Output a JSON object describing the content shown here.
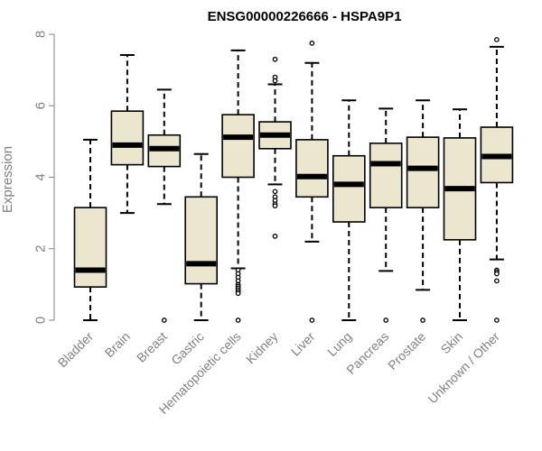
{
  "chart_data": {
    "type": "boxplot",
    "title": "ENSG00000226666 - HSPA9P1",
    "xlabel": "",
    "ylabel": "Expression",
    "ylim": [
      0,
      8
    ],
    "yticks": [
      "0",
      "2",
      "4",
      "6",
      "8"
    ],
    "box_fill": "#ede6cf",
    "stroke_color": "#000000",
    "axis_color": "#808080",
    "categories": [
      "Bladder",
      "Brain",
      "Breast",
      "Gastric",
      "Hematopoietic cells",
      "Kidney",
      "Liver",
      "Lung",
      "Pancreas",
      "Prostate",
      "Skin",
      "Unknown / Other"
    ],
    "series": [
      {
        "name": "Bladder",
        "min": 0.0,
        "q1": 0.93,
        "median": 1.4,
        "q3": 3.15,
        "max": 5.05,
        "outliers": []
      },
      {
        "name": "Brain",
        "min": 3.0,
        "q1": 4.35,
        "median": 4.9,
        "q3": 5.85,
        "max": 7.42,
        "outliers": []
      },
      {
        "name": "Breast",
        "min": 3.25,
        "q1": 4.3,
        "median": 4.8,
        "q3": 5.18,
        "max": 6.45,
        "outliers": [
          0.0
        ]
      },
      {
        "name": "Gastric",
        "min": 0.0,
        "q1": 1.02,
        "median": 1.58,
        "q3": 3.45,
        "max": 4.65,
        "outliers": []
      },
      {
        "name": "Hematopoietic cells",
        "min": 1.45,
        "q1": 4.0,
        "median": 5.12,
        "q3": 5.75,
        "max": 7.55,
        "outliers": [
          1.4,
          1.3,
          1.2,
          1.1,
          1.0,
          0.95,
          0.9,
          0.85,
          0.8,
          0.75,
          0.0
        ]
      },
      {
        "name": "Kidney",
        "min": 3.8,
        "q1": 4.8,
        "median": 5.18,
        "q3": 5.55,
        "max": 6.6,
        "outliers": [
          7.3,
          6.8,
          6.7,
          3.6,
          3.45,
          3.35,
          3.25,
          3.2,
          2.35
        ]
      },
      {
        "name": "Liver",
        "min": 2.2,
        "q1": 3.45,
        "median": 4.02,
        "q3": 5.05,
        "max": 7.2,
        "outliers": [
          7.75,
          0.0
        ]
      },
      {
        "name": "Lung",
        "min": 0.0,
        "q1": 2.75,
        "median": 3.8,
        "q3": 4.6,
        "max": 6.15,
        "outliers": []
      },
      {
        "name": "Pancreas",
        "min": 1.38,
        "q1": 3.15,
        "median": 4.38,
        "q3": 4.95,
        "max": 5.92,
        "outliers": [
          0.0
        ]
      },
      {
        "name": "Prostate",
        "min": 0.85,
        "q1": 3.15,
        "median": 4.25,
        "q3": 5.12,
        "max": 6.15,
        "outliers": [
          0.0
        ]
      },
      {
        "name": "Skin",
        "min": 0.0,
        "q1": 2.25,
        "median": 3.68,
        "q3": 5.1,
        "max": 5.9,
        "outliers": []
      },
      {
        "name": "Unknown / Other",
        "min": 1.7,
        "q1": 3.85,
        "median": 4.58,
        "q3": 5.4,
        "max": 7.65,
        "outliers": [
          7.85,
          1.4,
          1.35,
          1.3,
          1.1,
          0.0
        ]
      }
    ]
  }
}
